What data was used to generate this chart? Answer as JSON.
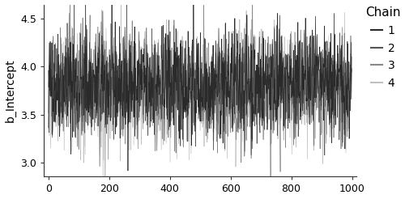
{
  "n_samples": 1000,
  "n_chains": 4,
  "seed": 42,
  "chain_means": [
    3.82,
    3.8,
    3.78,
    3.76
  ],
  "chain_stds": [
    0.28,
    0.27,
    0.28,
    0.29
  ],
  "chain_colors": [
    "#2a2a2a",
    "#555555",
    "#888888",
    "#c0c0c0"
  ],
  "chain_labels": [
    "1",
    "2",
    "3",
    "4"
  ],
  "ylabel": "b_Intercept",
  "xlabel": "",
  "ylim": [
    2.85,
    4.65
  ],
  "xlim": [
    -15,
    1015
  ],
  "yticks": [
    3.0,
    3.5,
    4.0,
    4.5
  ],
  "xticks": [
    0,
    200,
    400,
    600,
    800,
    1000
  ],
  "legend_title": "Chain",
  "line_width": 0.5,
  "alpha": 1.0,
  "background_color": "#ffffff",
  "legend_fontsize": 10,
  "legend_title_fontsize": 11,
  "ylabel_fontsize": 10,
  "tick_labelsize": 9
}
